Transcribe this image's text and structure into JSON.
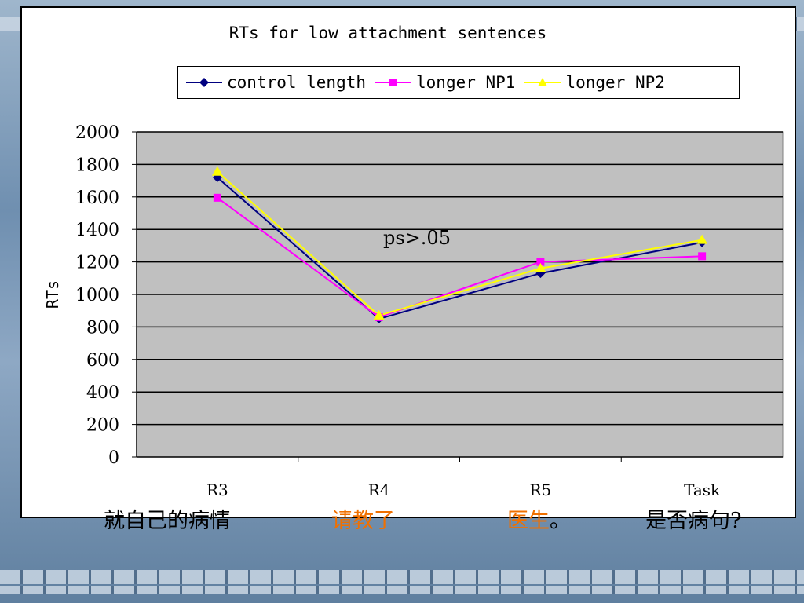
{
  "chart_data": {
    "type": "line",
    "title": "RTs for low attachment sentences",
    "ylabel": "RTs",
    "xlabel": "",
    "categories": [
      "R3",
      "R4",
      "R5",
      "Task"
    ],
    "ylim": [
      0,
      2000
    ],
    "yticks": [
      0,
      200,
      400,
      600,
      800,
      1000,
      1200,
      1400,
      1600,
      1800,
      2000
    ],
    "grid": true,
    "legend": "top",
    "series": [
      {
        "name": "control length",
        "values": [
          1720,
          850,
          1130,
          1320
        ],
        "color": "#000080",
        "marker": "diamond"
      },
      {
        "name": "longer NP1",
        "values": [
          1595,
          860,
          1200,
          1235
        ],
        "color": "#ff00ff",
        "marker": "square"
      },
      {
        "name": "longer NP2",
        "values": [
          1755,
          870,
          1160,
          1335
        ],
        "color": "#ffff00",
        "marker": "triangle"
      }
    ],
    "annotations": [
      {
        "text": "ps>.05"
      }
    ]
  },
  "sentence": {
    "segments": [
      {
        "text": "就自己的病情",
        "highlight": false
      },
      {
        "text": "请教了",
        "highlight": true
      },
      {
        "text": "医生",
        "highlight": true,
        "suffix": "。"
      },
      {
        "text": "是否病句?",
        "highlight": false
      }
    ]
  }
}
